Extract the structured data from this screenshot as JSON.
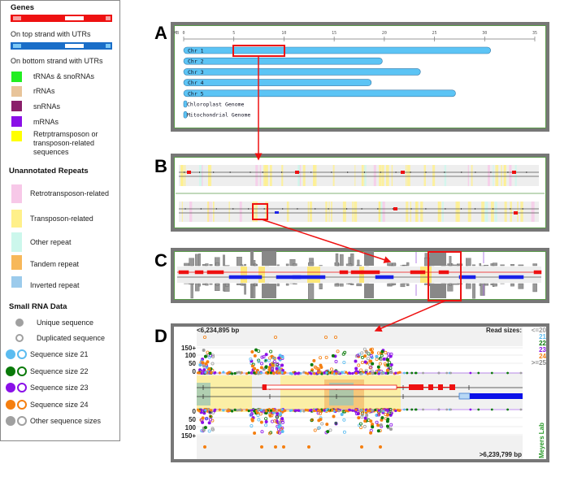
{
  "legend": {
    "genes_title": "Genes",
    "top_strand": "On top strand with UTRs",
    "bottom_strand": "On bottom strand with UTRs",
    "gene_types": [
      {
        "label": "tRNAs & snoRNAs",
        "color": "#22ee22"
      },
      {
        "label": "rRNAs",
        "color": "#e8c49a"
      },
      {
        "label": "snRNAs",
        "color": "#8a1f6a"
      },
      {
        "label": "mRNAs",
        "color": "#8a10e8"
      },
      {
        "label": "Retrptramsposon or transposon-related sequences",
        "color": "#ffff00"
      }
    ],
    "repeats_title": "Unannotated Repeats",
    "repeats": [
      {
        "label": "Retrotransposon-related",
        "color": "#f7c8e8"
      },
      {
        "label": "Transposon-related",
        "color": "#fff08a"
      },
      {
        "label": "Other repeat",
        "color": "#ccf7ec"
      },
      {
        "label": "Tandem repeat",
        "color": "#f7b85a"
      },
      {
        "label": "Inverted repeat",
        "color": "#9ccbec"
      }
    ],
    "srna_title": "Small RNA Data",
    "unique": "Unique sequence",
    "duplicated": "Duplicated sequence",
    "sizes": [
      {
        "label": "Sequence size 21",
        "color": "#5cbcf0"
      },
      {
        "label": "Sequence size 22",
        "color": "#0a7a0a"
      },
      {
        "label": "Sequence size 23",
        "color": "#8a10e8"
      },
      {
        "label": "Sequence size 24",
        "color": "#f57f10"
      },
      {
        "label": "Other sequence sizes",
        "color": "#a0a0a0"
      }
    ]
  },
  "panels": {
    "a": "A",
    "b": "B",
    "c": "C",
    "d": "D"
  },
  "panel_a": {
    "unit": "MB",
    "ticks": [
      "0",
      "5",
      "10",
      "15",
      "20",
      "25",
      "30",
      "35"
    ],
    "chromosomes": [
      {
        "label": "Chr 1",
        "length_mb": 30.6
      },
      {
        "label": "Chr 2",
        "length_mb": 19.8
      },
      {
        "label": "Chr 3",
        "length_mb": 23.6
      },
      {
        "label": "Chr 4",
        "length_mb": 18.7
      },
      {
        "label": "Chr 5",
        "length_mb": 27.1
      }
    ],
    "organelles": [
      "Chloroplast Genome",
      "Mitochondrial Genome"
    ],
    "selection_mb": [
      5,
      10
    ],
    "bar_color": "#5cc4f5"
  },
  "panel_d": {
    "start": "<6,234,895 bp",
    "end": ">6,239,799 bp",
    "read_sizes_title": "Read sizes:",
    "read_sizes": [
      {
        "label": "<=20",
        "color": "#999999"
      },
      {
        "label": "21",
        "color": "#5cbcf0"
      },
      {
        "label": "22",
        "color": "#0a7a0a"
      },
      {
        "label": "23",
        "color": "#8a10e8"
      },
      {
        "label": "24",
        "color": "#f57f10"
      },
      {
        "label": ">=25",
        "color": "#888888"
      }
    ],
    "y_top": [
      "150+",
      "100",
      "50",
      "0"
    ],
    "y_bottom": [
      "0",
      "50",
      "100",
      "150+"
    ],
    "credit": "Meyers Lab"
  },
  "colors": {
    "highlight": "#ee1111",
    "frame": "#777777",
    "frame_inner": "#5a9a4a"
  }
}
